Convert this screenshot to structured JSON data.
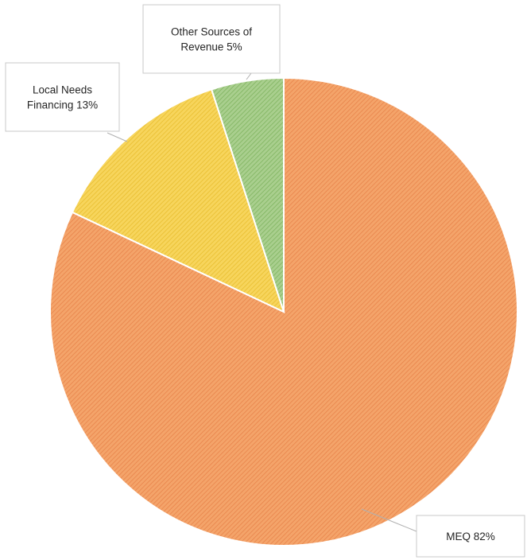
{
  "chart_data": {
    "type": "pie",
    "title": "",
    "slices": [
      {
        "label": "MEQ 82%",
        "name": "MEQ",
        "value": 82,
        "color": "#f4a46a",
        "pattern": "hatch-orange",
        "hatch": "#e8834a"
      },
      {
        "label": [
          "Local Needs",
          "Financing 13%"
        ],
        "name": "Local Needs Financing",
        "value": 13,
        "color": "#f7d55c",
        "pattern": "hatch-yellow",
        "hatch": "#e8bd2e"
      },
      {
        "label": [
          "Other Sources of",
          "Revenue 5%"
        ],
        "name": "Other Sources of Revenue",
        "value": 5,
        "color": "#a9cf8e",
        "pattern": "hatch-green",
        "hatch": "#7fb35f"
      }
    ],
    "start_angle_deg": 0,
    "direction": "clockwise",
    "legend": "none",
    "data_labels": "callouts"
  }
}
